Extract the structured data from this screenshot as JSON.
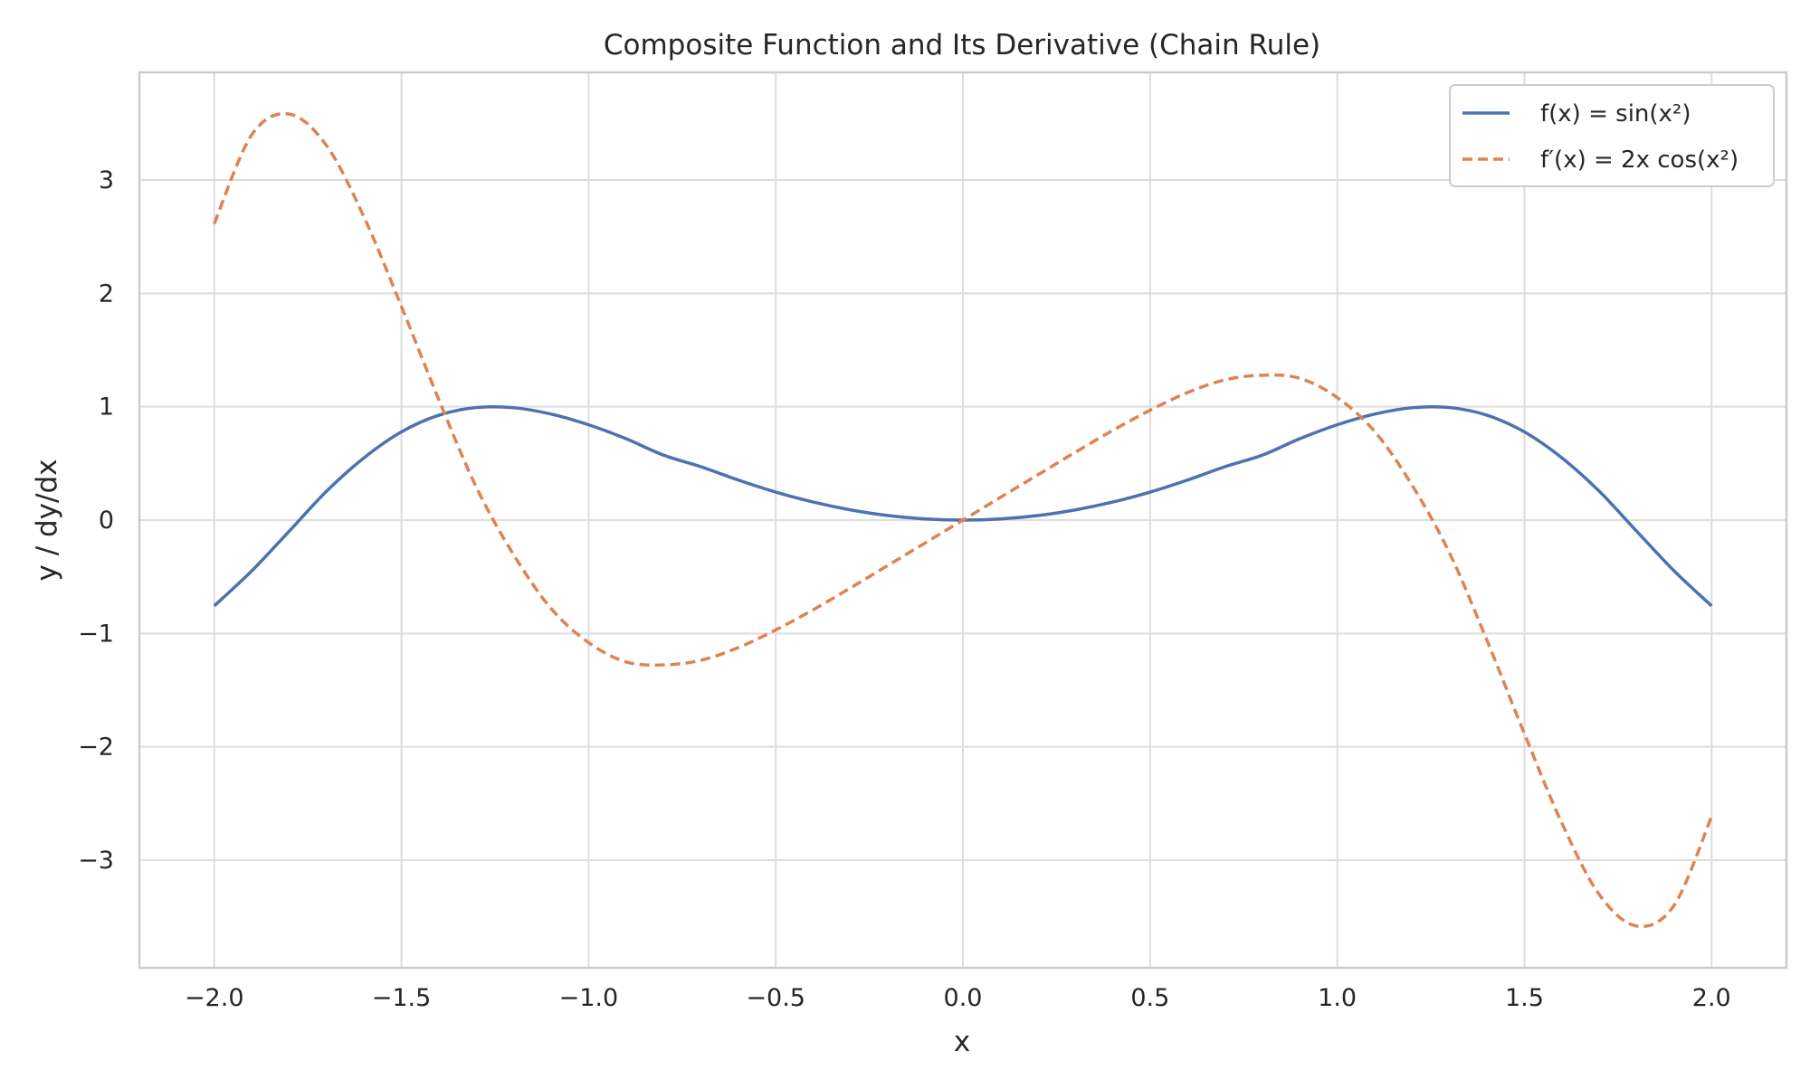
{
  "chart_data": {
    "type": "line",
    "title": "Composite Function and Its Derivative (Chain Rule)",
    "xlabel": "x",
    "ylabel": "y / dy/dx",
    "xlim": [
      -2.2,
      2.2
    ],
    "ylim": [
      -3.95,
      3.95
    ],
    "x_ticks": [
      -2.0,
      -1.5,
      -1.0,
      -0.5,
      0.0,
      0.5,
      1.0,
      1.5,
      2.0
    ],
    "x_tick_labels": [
      "−2.0",
      "−1.5",
      "−1.0",
      "−0.5",
      "0.0",
      "0.5",
      "1.0",
      "1.5",
      "2.0"
    ],
    "y_ticks": [
      3,
      2,
      1,
      0,
      -1,
      -2,
      -3
    ],
    "y_tick_labels": [
      "3",
      "2",
      "1",
      "0",
      "−1",
      "−2",
      "−3"
    ],
    "grid": true,
    "legend_position": "top-right",
    "x": [
      -2.0,
      -1.9,
      -1.8,
      -1.7,
      -1.6,
      -1.5,
      -1.4,
      -1.3,
      -1.2,
      -1.1,
      -1.0,
      -0.9,
      -0.8,
      -0.7,
      -0.6,
      -0.5,
      -0.4,
      -0.3,
      -0.2,
      -0.1,
      0.0,
      0.1,
      0.2,
      0.3,
      0.4,
      0.5,
      0.6,
      0.7,
      0.8,
      0.9,
      1.0,
      1.1,
      1.2,
      1.3,
      1.4,
      1.5,
      1.6,
      1.7,
      1.8,
      1.9,
      2.0
    ],
    "series": [
      {
        "name": "f(x) = sin(x²)",
        "color": "#4c72b0",
        "style": "solid",
        "values": [
          -0.757,
          -0.449,
          -0.099,
          0.254,
          0.549,
          0.778,
          0.925,
          0.993,
          0.991,
          0.935,
          0.841,
          0.718,
          0.573,
          0.471,
          0.353,
          0.247,
          0.159,
          0.09,
          0.04,
          0.01,
          0.0,
          0.01,
          0.04,
          0.09,
          0.159,
          0.247,
          0.353,
          0.471,
          0.573,
          0.718,
          0.841,
          0.935,
          0.991,
          0.993,
          0.925,
          0.778,
          0.549,
          0.254,
          -0.099,
          -0.449,
          -0.757
        ]
      },
      {
        "name": "f′(x) = 2x cos(x²)",
        "color": "#dd8452",
        "style": "dashed",
        "values": [
          2.614,
          3.398,
          3.582,
          3.304,
          2.674,
          1.885,
          1.062,
          0.291,
          -0.307,
          -0.781,
          -1.081,
          -1.251,
          -1.278,
          -1.237,
          -1.125,
          -0.969,
          -0.791,
          -0.598,
          -0.399,
          -0.2,
          0.0,
          0.2,
          0.399,
          0.598,
          0.791,
          0.969,
          1.125,
          1.237,
          1.278,
          1.251,
          1.081,
          0.781,
          0.307,
          -0.291,
          -1.062,
          -1.885,
          -2.674,
          -3.304,
          -3.582,
          -3.398,
          -2.614
        ]
      }
    ]
  }
}
